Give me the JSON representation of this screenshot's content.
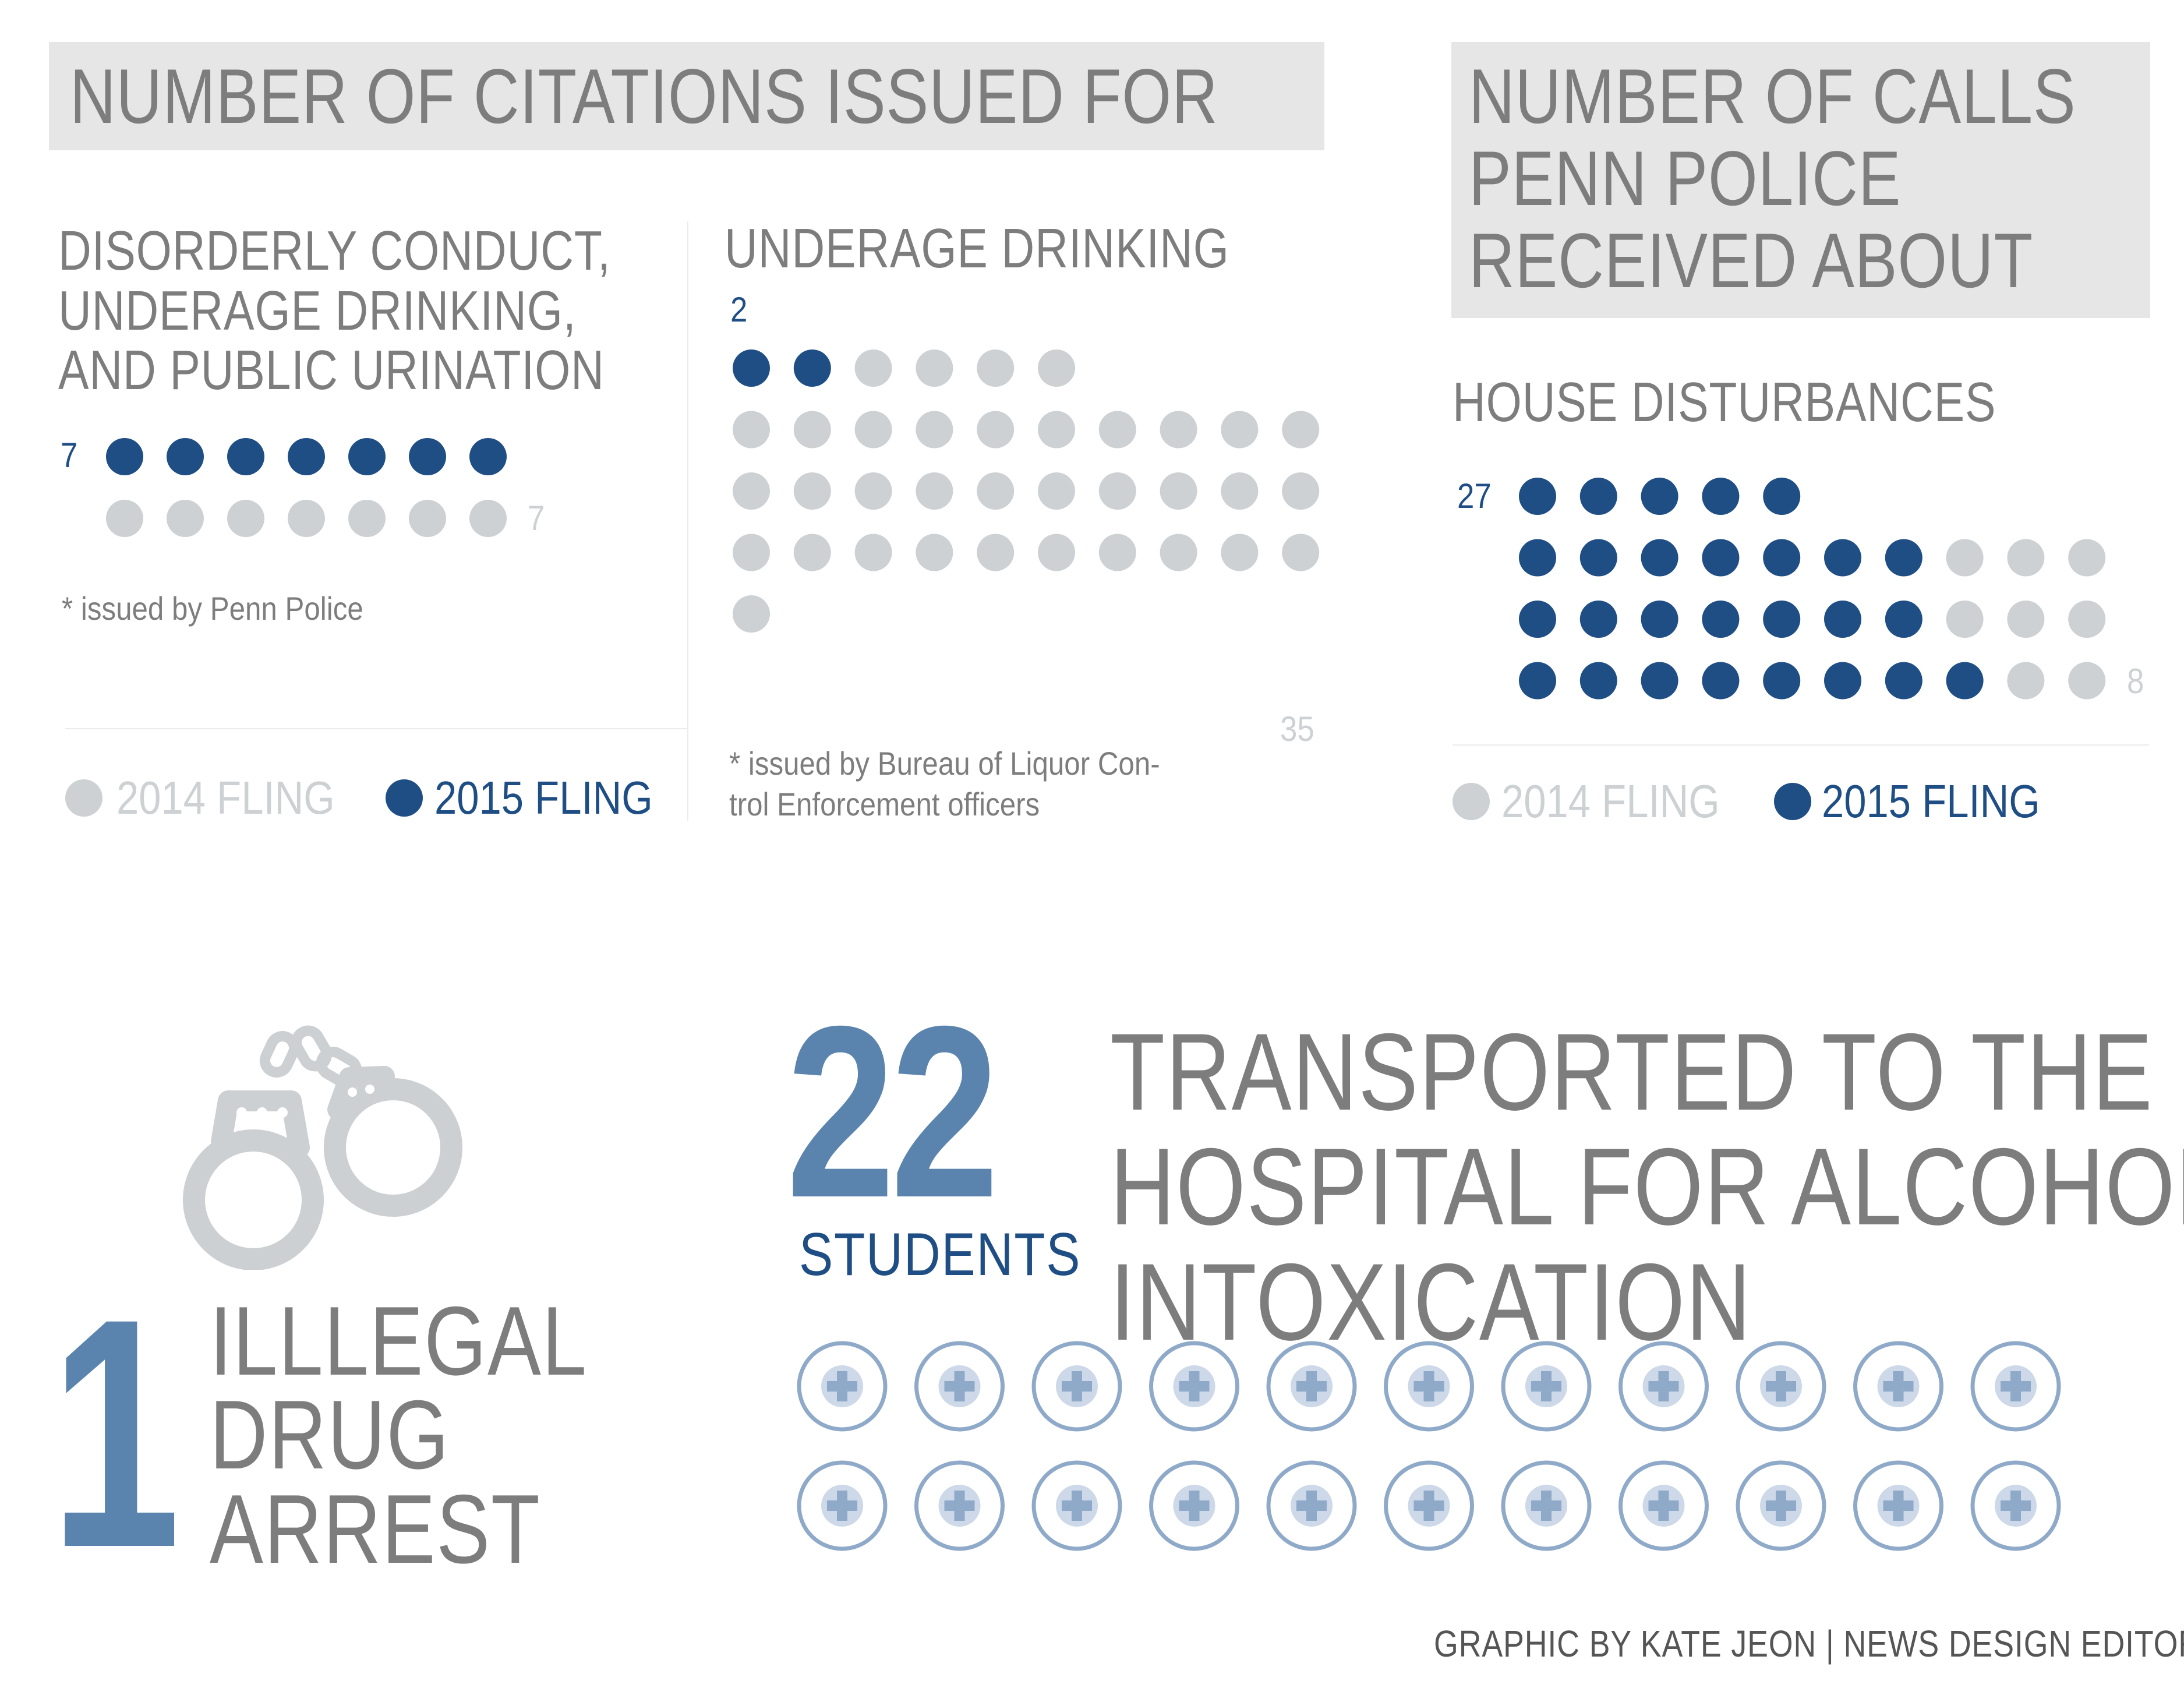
{
  "colors": {
    "fling_2014": "#cdd1d3",
    "fling_2015": "#1f4e85",
    "accent_light": "#5a84ad",
    "hospital_icon": "#8fa9c9",
    "text_grey": "#7d7d7d",
    "banner_bg": "#e6e6e6"
  },
  "citations": {
    "banner": "NUMBER OF CITATIONS ISSUED FOR",
    "disorderly": {
      "title_lines": [
        "DISORDERLY CONDUCT,",
        "UNDERAGE DRINKING,",
        "AND PUBLIC URINATION"
      ],
      "value_2015_label": "7",
      "value_2014_label": "7",
      "footnote": "* issued by Penn Police"
    },
    "underage": {
      "title": "UNDERAGE DRINKING",
      "value_2015_label": "2",
      "value_2014_label": "35",
      "footnote_lines": [
        "* issued by Bureau of Liquor Con-",
        "trol Enforcement officers"
      ]
    },
    "legend": {
      "label_2014": "2014 FLING",
      "label_2015": "2015 FLING"
    }
  },
  "calls": {
    "banner_lines": [
      "NUMBER OF CALLS",
      "PENN POLICE",
      "RECEIVED ABOUT"
    ],
    "house": {
      "title": "HOUSE DISTURBANCES",
      "value_2015_label": "27",
      "value_2014_label": "8"
    },
    "legend": {
      "label_2014": "2014 FLING",
      "label_2015": "2015 FLING"
    }
  },
  "arrest": {
    "number": "1",
    "text_lines": [
      "ILLLEGAL",
      "DRUG",
      "ARREST"
    ],
    "icon": "handcuffs-icon"
  },
  "hospital": {
    "number": "22",
    "unit": "STUDENTS",
    "text_lines": [
      "TRANSPORTED TO THE",
      "HOSPITAL FOR ALCOHOL",
      "INTOXICATION"
    ],
    "icon": "medical-cross-icon"
  },
  "credit": "GRAPHIC BY KATE JEON | NEWS DESIGN EDITOR",
  "chart_data": [
    {
      "type": "pictogram",
      "title": "DISORDERLY CONDUCT, UNDERAGE DRINKING, AND PUBLIC URINATION",
      "series": [
        {
          "name": "2014 FLING",
          "values": [
            7
          ]
        },
        {
          "name": "2015 FLING",
          "values": [
            7
          ]
        }
      ],
      "legend": "bottom"
    },
    {
      "type": "pictogram",
      "title": "UNDERAGE DRINKING",
      "series": [
        {
          "name": "2014 FLING",
          "values": [
            35
          ]
        },
        {
          "name": "2015 FLING",
          "values": [
            2
          ]
        }
      ],
      "legend": "bottom"
    },
    {
      "type": "pictogram",
      "title": "HOUSE DISTURBANCES",
      "series": [
        {
          "name": "2014 FLING",
          "values": [
            8
          ]
        },
        {
          "name": "2015 FLING",
          "values": [
            27
          ]
        }
      ],
      "legend": "bottom"
    }
  ]
}
